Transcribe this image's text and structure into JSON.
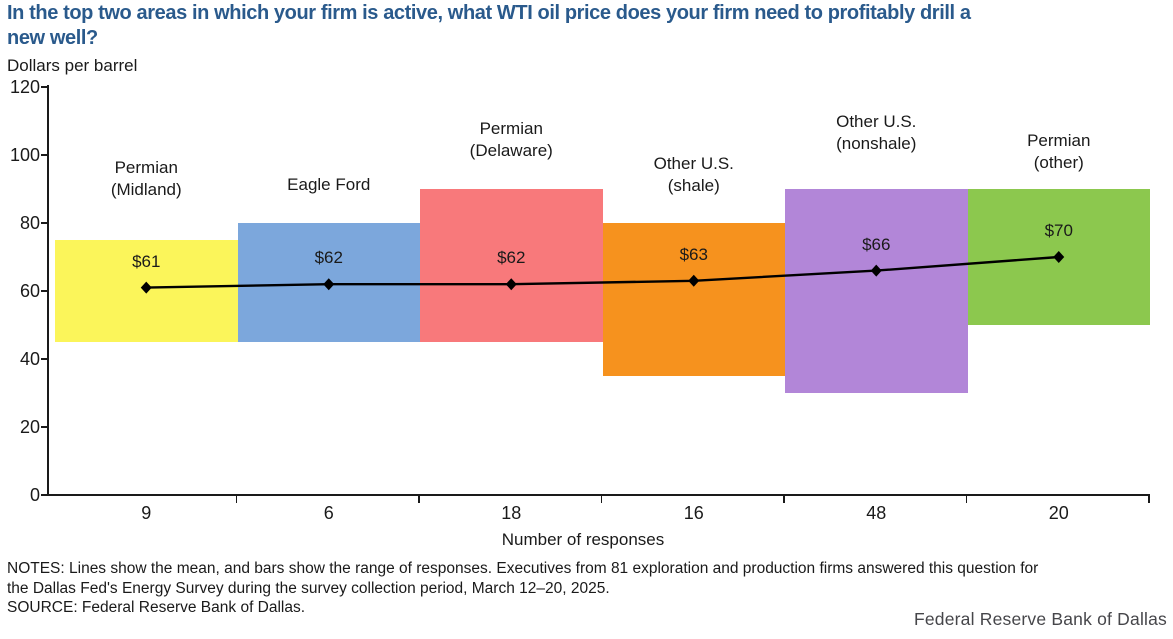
{
  "title": "In the top two areas in which your firm is active, what WTI oil price does your firm need to profitably drill a new well?",
  "title_lines": [
    "In the top two areas in which your firm is active, what WTI oil price does your firm need to profitably drill a",
    "new well?"
  ],
  "y_axis_unit_label": "Dollars per barrel",
  "x_axis_label": "Number of responses",
  "notes_lines": [
    "NOTES: Lines show the mean, and bars show the range of responses. Executives from 81 exploration and production firms answered this question for",
    "the Dallas Fed's Energy Survey during the survey collection period, March 12–20, 2025."
  ],
  "source": "SOURCE: Federal Reserve Bank of Dallas.",
  "branding": "Federal Reserve Bank of Dallas",
  "colors": {
    "title_text": "#2A5A8C",
    "axis": "#1A1A1A",
    "mean_line": "#000000",
    "branding_text": "#46464A"
  },
  "chart_data": {
    "type": "bar",
    "subtype": "floating-range-bars-with-mean-line",
    "title": "In the top two areas in which your firm is active, what WTI oil price does your firm need to profitably drill a new well?",
    "ylabel": "Dollars per barrel",
    "xlabel": "Number of responses",
    "ylim": [
      0,
      120
    ],
    "yticks": [
      0,
      20,
      40,
      60,
      80,
      100,
      120
    ],
    "grid": false,
    "legend": "none",
    "annotation_note": "Lines show the mean, bars show the range of responses",
    "categories": [
      {
        "label": "Permian (Midland)",
        "label_lines": [
          "Permian",
          "(Midland)"
        ],
        "responses": 9,
        "mean": 61,
        "mean_label": "$61",
        "range": [
          45,
          75
        ],
        "color": "#FBF55A"
      },
      {
        "label": "Eagle Ford",
        "label_lines": [
          "Eagle Ford"
        ],
        "responses": 6,
        "mean": 62,
        "mean_label": "$62",
        "range": [
          45,
          80
        ],
        "color": "#7CA7DC"
      },
      {
        "label": "Permian (Delaware)",
        "label_lines": [
          "Permian",
          "(Delaware)"
        ],
        "responses": 18,
        "mean": 62,
        "mean_label": "$62",
        "range": [
          45,
          90
        ],
        "color": "#F8797B"
      },
      {
        "label": "Other U.S. (shale)",
        "label_lines": [
          "Other U.S.",
          "(shale)"
        ],
        "responses": 16,
        "mean": 63,
        "mean_label": "$63",
        "range": [
          35,
          80
        ],
        "color": "#F6921E"
      },
      {
        "label": "Other U.S. (nonshale)",
        "label_lines": [
          "Other U.S.",
          "(nonshale)"
        ],
        "responses": 48,
        "mean": 66,
        "mean_label": "$66",
        "range": [
          30,
          90
        ],
        "color": "#B286D8"
      },
      {
        "label": "Permian (other)",
        "label_lines": [
          "Permian",
          "(other)"
        ],
        "responses": 20,
        "mean": 70,
        "mean_label": "$70",
        "range": [
          50,
          90
        ],
        "color": "#8CC84E"
      }
    ]
  }
}
